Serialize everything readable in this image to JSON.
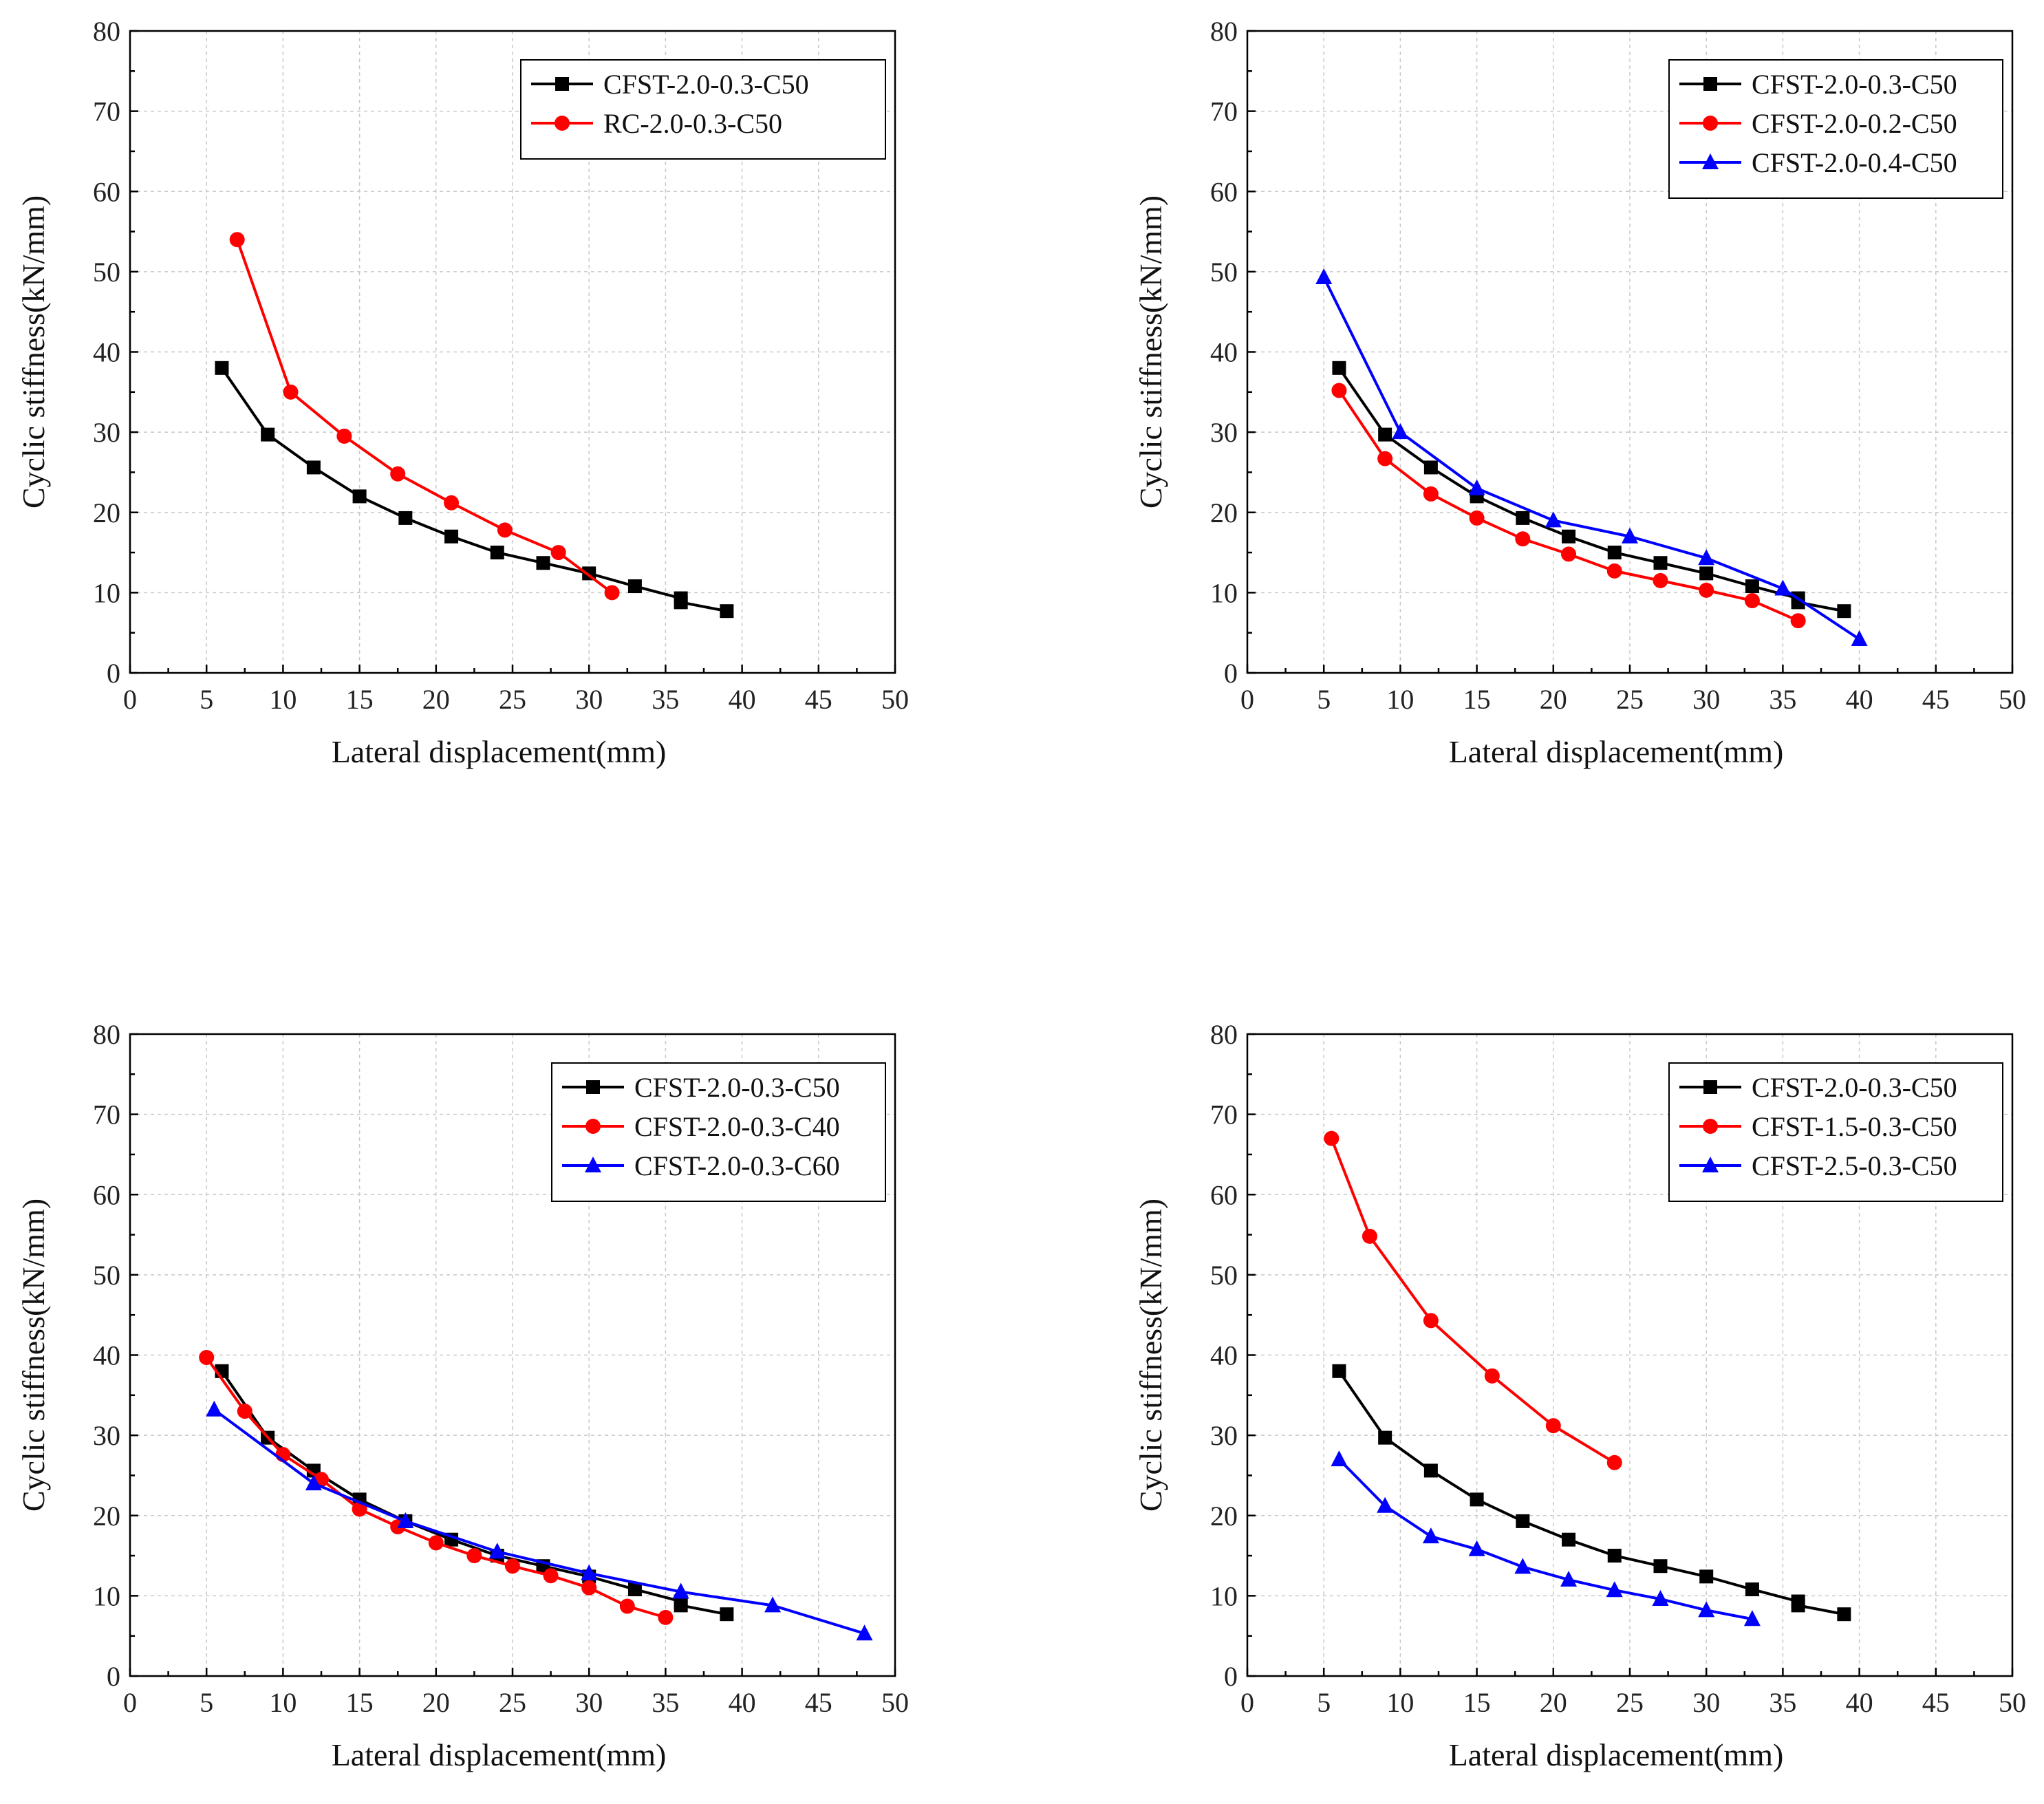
{
  "chart_data": [
    {
      "type": "line",
      "xlabel": "Lateral displacement(mm)",
      "ylabel": "Cyclic stiffness(kN/mm)",
      "xlim": [
        0,
        50
      ],
      "ylim": [
        0,
        80
      ],
      "xticks": [
        "0",
        "5",
        "10",
        "15",
        "20",
        "25",
        "30",
        "35",
        "40",
        "45",
        "50"
      ],
      "yticks": [
        "0",
        "10",
        "20",
        "30",
        "40",
        "50",
        "60",
        "70",
        "80"
      ],
      "grid": true,
      "legend": "top-right",
      "series": [
        {
          "name": "CFST-2.0-0.3-C50",
          "color": "#000000",
          "marker": "square",
          "x": [
            6,
            9,
            12,
            15,
            18,
            21,
            24,
            27,
            30,
            33,
            36,
            36,
            39
          ],
          "y": [
            38,
            29.7,
            25.6,
            22,
            19.3,
            17,
            15,
            13.7,
            12.4,
            10.8,
            9.3,
            8.8,
            7.7
          ]
        },
        {
          "name": "RC-2.0-0.3-C50",
          "color": "#ff0000",
          "marker": "circle",
          "x": [
            7,
            10.5,
            14,
            17.5,
            21,
            24.5,
            28,
            31.5
          ],
          "y": [
            54,
            35,
            29.5,
            24.8,
            21.2,
            17.8,
            15,
            10
          ]
        }
      ]
    },
    {
      "type": "line",
      "xlabel": "Lateral displacement(mm)",
      "ylabel": "Cyclic stiffness(kN/mm)",
      "xlim": [
        0,
        50
      ],
      "ylim": [
        0,
        80
      ],
      "xticks": [
        "0",
        "5",
        "10",
        "15",
        "20",
        "25",
        "30",
        "35",
        "40",
        "45",
        "50"
      ],
      "yticks": [
        "0",
        "10",
        "20",
        "30",
        "40",
        "50",
        "60",
        "70",
        "80"
      ],
      "grid": true,
      "legend": "top-right",
      "series": [
        {
          "name": "CFST-2.0-0.3-C50",
          "color": "#000000",
          "marker": "square",
          "x": [
            6,
            9,
            12,
            15,
            18,
            21,
            24,
            27,
            30,
            33,
            36,
            36,
            39
          ],
          "y": [
            38,
            29.7,
            25.6,
            22,
            19.3,
            17,
            15,
            13.7,
            12.4,
            10.8,
            9.3,
            8.8,
            7.7
          ]
        },
        {
          "name": "CFST-2.0-0.2-C50",
          "color": "#ff0000",
          "marker": "circle",
          "x": [
            6,
            9,
            12,
            15,
            18,
            21,
            24,
            27,
            30,
            33,
            36
          ],
          "y": [
            35.2,
            26.7,
            22.3,
            19.3,
            16.7,
            14.8,
            12.7,
            11.5,
            10.3,
            9,
            6.5
          ]
        },
        {
          "name": "CFST-2.0-0.4-C50",
          "color": "#0000ff",
          "marker": "triangle",
          "x": [
            5,
            10,
            15,
            20,
            25,
            30,
            35,
            40
          ],
          "y": [
            49.3,
            30,
            23,
            19,
            17,
            14.3,
            10.5,
            4.2
          ]
        }
      ]
    },
    {
      "type": "line",
      "xlabel": "Lateral displacement(mm)",
      "ylabel": "Cyclic stiffness(kN/mm)",
      "xlim": [
        0,
        50
      ],
      "ylim": [
        0,
        80
      ],
      "xticks": [
        "0",
        "5",
        "10",
        "15",
        "20",
        "25",
        "30",
        "35",
        "40",
        "45",
        "50"
      ],
      "yticks": [
        "0",
        "10",
        "20",
        "30",
        "40",
        "50",
        "60",
        "70",
        "80"
      ],
      "grid": true,
      "legend": "top-right",
      "series": [
        {
          "name": "CFST-2.0-0.3-C50",
          "color": "#000000",
          "marker": "square",
          "x": [
            6,
            9,
            12,
            15,
            18,
            21,
            24,
            27,
            30,
            33,
            36,
            36,
            39
          ],
          "y": [
            38,
            29.7,
            25.6,
            22,
            19.3,
            17,
            15,
            13.7,
            12.4,
            10.8,
            9.3,
            8.8,
            7.7
          ]
        },
        {
          "name": "CFST-2.0-0.3-C40",
          "color": "#ff0000",
          "marker": "circle",
          "x": [
            5,
            7.5,
            10,
            12.5,
            15,
            17.5,
            20,
            22.5,
            25,
            27.5,
            30,
            32.5,
            35
          ],
          "y": [
            39.7,
            33,
            27.6,
            24.5,
            20.8,
            18.6,
            16.6,
            15,
            13.7,
            12.5,
            11,
            8.7,
            7.3
          ]
        },
        {
          "name": "CFST-2.0-0.3-C60",
          "color": "#0000ff",
          "marker": "triangle",
          "x": [
            5.5,
            12,
            18,
            24,
            30,
            36,
            42,
            48
          ],
          "y": [
            33.2,
            24,
            19.3,
            15.5,
            12.8,
            10.5,
            8.8,
            5.3
          ]
        }
      ]
    },
    {
      "type": "line",
      "xlabel": "Lateral displacement(mm)",
      "ylabel": "Cyclic stiffness(kN/mm)",
      "xlim": [
        0,
        50
      ],
      "ylim": [
        0,
        80
      ],
      "xticks": [
        "0",
        "5",
        "10",
        "15",
        "20",
        "25",
        "30",
        "35",
        "40",
        "45",
        "50"
      ],
      "yticks": [
        "0",
        "10",
        "20",
        "30",
        "40",
        "50",
        "60",
        "70",
        "80"
      ],
      "grid": true,
      "legend": "top-right",
      "series": [
        {
          "name": "CFST-2.0-0.3-C50",
          "color": "#000000",
          "marker": "square",
          "x": [
            6,
            9,
            12,
            15,
            18,
            21,
            24,
            27,
            30,
            33,
            36,
            36,
            39
          ],
          "y": [
            38,
            29.7,
            25.6,
            22,
            19.3,
            17,
            15,
            13.7,
            12.4,
            10.8,
            9.3,
            8.8,
            7.7
          ]
        },
        {
          "name": "CFST-1.5-0.3-C50",
          "color": "#ff0000",
          "marker": "circle",
          "x": [
            5.5,
            8,
            12,
            16,
            20,
            24
          ],
          "y": [
            67,
            54.8,
            44.3,
            37.4,
            31.2,
            26.6
          ]
        },
        {
          "name": "CFST-2.5-0.3-C50",
          "color": "#0000ff",
          "marker": "triangle",
          "x": [
            6,
            9,
            12,
            15,
            18,
            21,
            24,
            27,
            30,
            33
          ],
          "y": [
            27,
            21.2,
            17.4,
            15.8,
            13.6,
            12,
            10.7,
            9.6,
            8.2,
            7.1
          ]
        }
      ]
    }
  ]
}
